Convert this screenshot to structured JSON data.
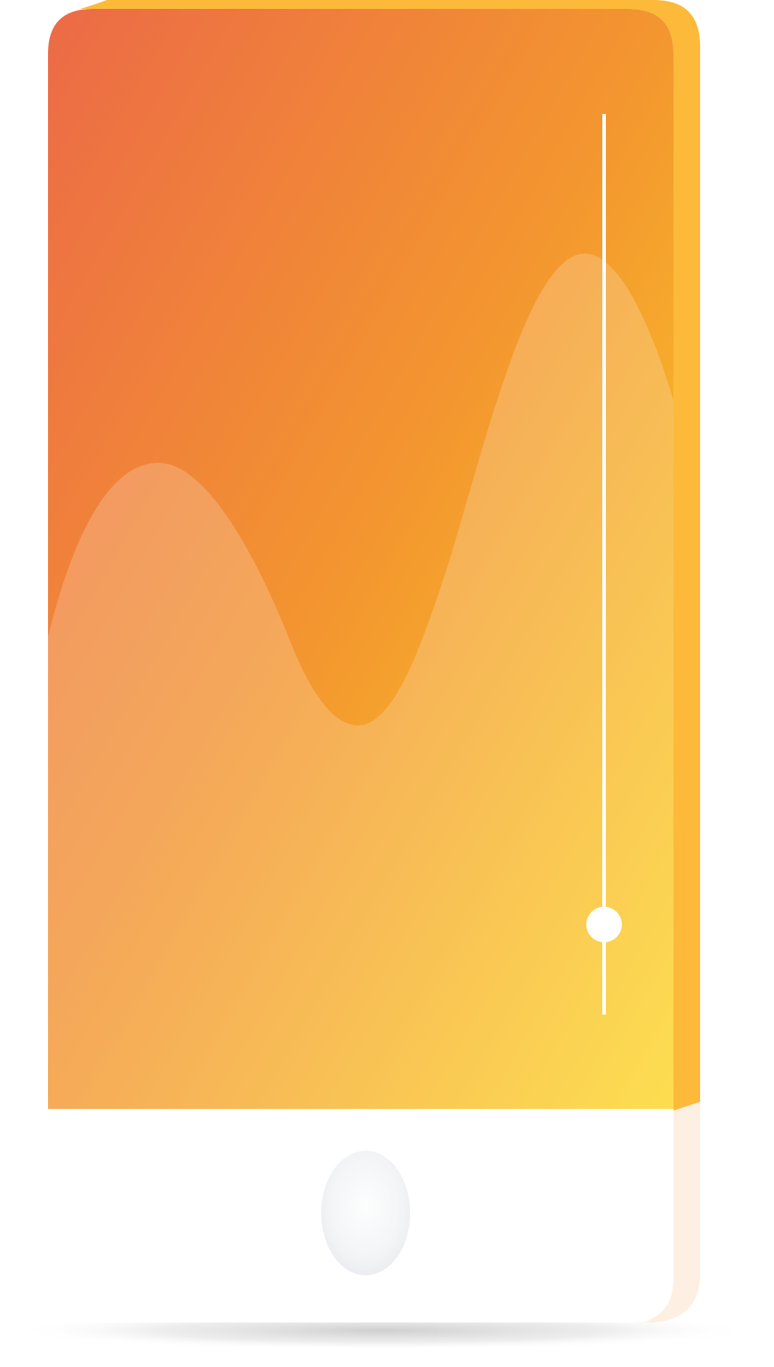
{
  "device": {
    "icon": "smartphone-icon",
    "side_color": "#FDB93A",
    "side_lower_color": "#FDEFE1",
    "bezel_color": "#FFFFFF"
  },
  "screen": {
    "gradient_start": "#EC6A47",
    "gradient_mid": "#F3962F",
    "gradient_end": "#FDD625",
    "wave_color": "#FFFFFF",
    "wave_opacity": 0.2
  },
  "slider": {
    "icon": "vertical-slider-icon",
    "value": 0.1,
    "track_color": "#FFFFFF",
    "thumb_color": "#FFFFFF"
  },
  "home_button": {
    "icon": "home-button-icon"
  }
}
